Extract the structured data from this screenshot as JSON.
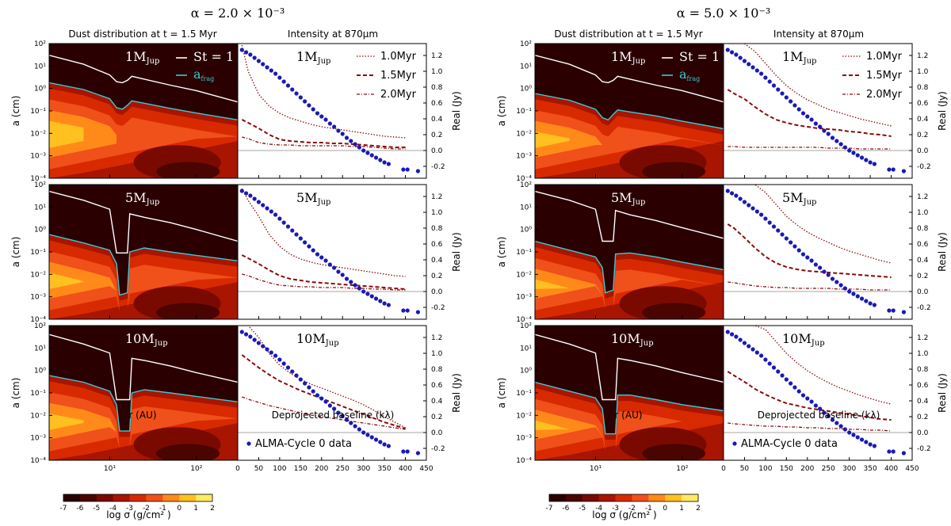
{
  "figure": {
    "columns": [
      {
        "alpha_title": "α = 2.0 × 10⁻³",
        "dust_title": "Dust distribution at t =  1.5 Myr",
        "intensity_title": "Intensity at 870μm"
      },
      {
        "alpha_title": "α = 5.0 × 10⁻³",
        "dust_title": "Dust distribution at t =  1.5 Myr",
        "intensity_title": "Intensity at 870μm"
      }
    ],
    "rows": [
      {
        "mass_label": "1M",
        "mass_sub": "Jup"
      },
      {
        "mass_label": "5M",
        "mass_sub": "Jup"
      },
      {
        "mass_label": "10M",
        "mass_sub": "Jup"
      }
    ],
    "legend_curves": {
      "st": "St = 1",
      "afrag": "a",
      "afrag_sub": "frag"
    },
    "legend_times": [
      "1.0Myr",
      "1.5Myr",
      "2.0Myr"
    ],
    "data_label": "ALMA-Cycle 0 data",
    "colorbar": {
      "label": "log σ (g/cm² )",
      "ticks": [
        "-7",
        "-6",
        "-5",
        "-4",
        "-3",
        "-2",
        "-1",
        "0",
        "1",
        "2"
      ],
      "colors": [
        "#2a0000",
        "#4a0500",
        "#7a0a00",
        "#a81500",
        "#d82a00",
        "#f0501a",
        "#ff8a1a",
        "#ffc020",
        "#ffea60",
        "#ffffb0"
      ]
    },
    "colors": {
      "st_line": "#ffffff",
      "afrag_line": "#3fc8d4",
      "data": "#1a1ab4",
      "model": "#8b0a0a",
      "gas_bg": "#2a0000"
    }
  },
  "chart_data": {
    "type": "line",
    "left_axes": {
      "xlabel": "r (AU)",
      "ylabel": "a (cm)",
      "x_scale": "log",
      "y_scale": "log",
      "xlim": [
        2,
        300
      ],
      "ylim": [
        0.0001,
        100
      ],
      "x_ticks": [
        "10¹",
        "10²"
      ],
      "y_ticks": [
        "10⁻⁴",
        "10⁻³",
        "10⁻²",
        "10⁻¹",
        "10⁰",
        "10¹",
        "10²"
      ]
    },
    "right_axes": {
      "xlabel": "Deprojected baseline (kλ)",
      "ylabel": "Real (Jy)",
      "xlim": [
        0,
        450
      ],
      "ylim": [
        -0.35,
        1.35
      ],
      "x_ticks": [
        "0",
        "50",
        "100",
        "150",
        "200",
        "250",
        "300",
        "350",
        "400",
        "450"
      ],
      "y_ticks": [
        "-0.2",
        "0.0",
        "0.2",
        "0.4",
        "0.6",
        "0.8",
        "1.0",
        "1.2"
      ]
    },
    "alma_data": {
      "baseline": [
        10,
        20,
        30,
        40,
        50,
        60,
        70,
        80,
        90,
        100,
        110,
        120,
        130,
        140,
        150,
        160,
        170,
        180,
        190,
        200,
        210,
        220,
        230,
        240,
        250,
        260,
        270,
        280,
        290,
        300,
        310,
        320,
        330,
        340,
        350,
        360,
        395,
        405,
        430
      ],
      "real": [
        1.27,
        1.24,
        1.21,
        1.17,
        1.13,
        1.09,
        1.05,
        1.01,
        0.97,
        0.92,
        0.87,
        0.82,
        0.77,
        0.72,
        0.67,
        0.62,
        0.57,
        0.52,
        0.47,
        0.43,
        0.39,
        0.34,
        0.3,
        0.25,
        0.21,
        0.16,
        0.12,
        0.08,
        0.04,
        0.0,
        -0.03,
        -0.06,
        -0.09,
        -0.12,
        -0.15,
        -0.17,
        -0.24,
        -0.24,
        -0.26
      ]
    },
    "model_baseline": [
      10,
      25,
      50,
      75,
      100,
      125,
      150,
      175,
      200,
      225,
      250,
      275,
      300,
      325,
      350,
      375,
      400
    ],
    "panels": [
      {
        "column": 0,
        "mass": 1,
        "st": [
          [
            2,
            30
          ],
          [
            5,
            12
          ],
          [
            10,
            4
          ],
          [
            12,
            2
          ],
          [
            14,
            1.8
          ],
          [
            16,
            2.3
          ],
          [
            18,
            3.5
          ],
          [
            25,
            2.6
          ],
          [
            50,
            1.4
          ],
          [
            100,
            0.8
          ],
          [
            300,
            0.25
          ]
        ],
        "afrag": [
          [
            2,
            1.8
          ],
          [
            5,
            0.9
          ],
          [
            10,
            0.35
          ],
          [
            12,
            0.14
          ],
          [
            14,
            0.12
          ],
          [
            16,
            0.18
          ],
          [
            18,
            0.28
          ],
          [
            25,
            0.22
          ],
          [
            50,
            0.13
          ],
          [
            100,
            0.08
          ],
          [
            300,
            0.04
          ]
        ],
        "v_1.0": [
          1.33,
          1.0,
          0.71,
          0.56,
          0.47,
          0.41,
          0.37,
          0.33,
          0.3,
          0.28,
          0.26,
          0.24,
          0.22,
          0.2,
          0.18,
          0.17,
          0.16
        ],
        "v_1.5": [
          0.39,
          0.35,
          0.28,
          0.2,
          0.14,
          0.12,
          0.11,
          0.1,
          0.1,
          0.09,
          0.09,
          0.08,
          0.07,
          0.06,
          0.05,
          0.04,
          0.04
        ],
        "v_2.0": [
          0.17,
          0.15,
          0.1,
          0.08,
          0.07,
          0.07,
          0.06,
          0.06,
          0.06,
          0.06,
          0.06,
          0.05,
          0.05,
          0.04,
          0.03,
          0.02,
          0.02
        ]
      },
      {
        "column": 0,
        "mass": 5,
        "st": [
          [
            2,
            50
          ],
          [
            5,
            20
          ],
          [
            10,
            8
          ],
          [
            12,
            0.09
          ],
          [
            16,
            0.09
          ],
          [
            17,
            5
          ],
          [
            25,
            3.5
          ],
          [
            50,
            2
          ],
          [
            100,
            1
          ],
          [
            300,
            0.3
          ]
        ],
        "afrag": [
          [
            2,
            0.6
          ],
          [
            5,
            0.25
          ],
          [
            10,
            0.12
          ],
          [
            12,
            0.03
          ],
          [
            13,
            0.0012
          ],
          [
            16,
            0.0015
          ],
          [
            17,
            0.1
          ],
          [
            25,
            0.15
          ],
          [
            50,
            0.1
          ],
          [
            100,
            0.07
          ],
          [
            300,
            0.04
          ]
        ],
        "v_1.0": [
          1.3,
          1.15,
          0.95,
          0.72,
          0.57,
          0.47,
          0.41,
          0.37,
          0.34,
          0.32,
          0.3,
          0.28,
          0.26,
          0.24,
          0.22,
          0.2,
          0.19
        ],
        "v_1.5": [
          0.46,
          0.42,
          0.35,
          0.27,
          0.2,
          0.16,
          0.14,
          0.12,
          0.11,
          0.1,
          0.09,
          0.08,
          0.07,
          0.06,
          0.05,
          0.04,
          0.03
        ],
        "v_2.0": [
          0.22,
          0.2,
          0.15,
          0.11,
          0.08,
          0.07,
          0.06,
          0.06,
          0.05,
          0.05,
          0.05,
          0.04,
          0.04,
          0.03,
          0.03,
          0.02,
          0.02
        ]
      },
      {
        "column": 0,
        "mass": 10,
        "st": [
          [
            2,
            40
          ],
          [
            5,
            15
          ],
          [
            10,
            6
          ],
          [
            12,
            0.05
          ],
          [
            17,
            0.05
          ],
          [
            18,
            3.5
          ],
          [
            25,
            2.8
          ],
          [
            50,
            1.6
          ],
          [
            100,
            0.8
          ],
          [
            300,
            0.3
          ]
        ],
        "afrag": [
          [
            2,
            0.6
          ],
          [
            5,
            0.3
          ],
          [
            10,
            0.12
          ],
          [
            12,
            0.03
          ],
          [
            13,
            0.002
          ],
          [
            17,
            0.002
          ],
          [
            18,
            0.1
          ],
          [
            25,
            0.14
          ],
          [
            50,
            0.1
          ],
          [
            100,
            0.07
          ],
          [
            300,
            0.04
          ]
        ],
        "v_1.0": [
          1.35,
          1.35,
          1.2,
          1.0,
          0.85,
          0.75,
          0.67,
          0.61,
          0.56,
          0.51,
          0.46,
          0.41,
          0.35,
          0.28,
          0.2,
          0.13,
          0.06
        ],
        "v_1.5": [
          0.98,
          0.92,
          0.82,
          0.73,
          0.65,
          0.59,
          0.53,
          0.48,
          0.43,
          0.38,
          0.33,
          0.28,
          0.23,
          0.18,
          0.13,
          0.09,
          0.05
        ],
        "v_2.0": [
          0.45,
          0.42,
          0.38,
          0.34,
          0.31,
          0.28,
          0.25,
          0.22,
          0.2,
          0.18,
          0.16,
          0.14,
          0.12,
          0.1,
          0.08,
          0.06,
          0.04
        ]
      },
      {
        "column": 1,
        "mass": 1,
        "st": [
          [
            2,
            30
          ],
          [
            5,
            12
          ],
          [
            10,
            4
          ],
          [
            12,
            2
          ],
          [
            14,
            1.8
          ],
          [
            16,
            2.3
          ],
          [
            18,
            3.5
          ],
          [
            25,
            2.6
          ],
          [
            50,
            1.4
          ],
          [
            100,
            0.8
          ],
          [
            300,
            0.25
          ]
        ],
        "afrag": [
          [
            2,
            0.6
          ],
          [
            5,
            0.3
          ],
          [
            10,
            0.12
          ],
          [
            12,
            0.05
          ],
          [
            14,
            0.04
          ],
          [
            16,
            0.07
          ],
          [
            18,
            0.11
          ],
          [
            25,
            0.09
          ],
          [
            50,
            0.06
          ],
          [
            100,
            0.035
          ],
          [
            300,
            0.016
          ]
        ],
        "v_1.0": [
          1.35,
          1.35,
          1.35,
          1.25,
          1.1,
          0.95,
          0.82,
          0.72,
          0.64,
          0.58,
          0.52,
          0.48,
          0.44,
          0.4,
          0.37,
          0.34,
          0.31
        ],
        "v_1.5": [
          0.77,
          0.72,
          0.65,
          0.55,
          0.46,
          0.39,
          0.35,
          0.32,
          0.3,
          0.28,
          0.27,
          0.26,
          0.24,
          0.23,
          0.21,
          0.2,
          0.18
        ],
        "v_2.0": [
          0.05,
          0.05,
          0.04,
          0.04,
          0.04,
          0.04,
          0.04,
          0.04,
          0.04,
          0.04,
          0.03,
          0.03,
          0.03,
          0.02,
          0.02,
          0.02,
          0.02
        ]
      },
      {
        "column": 1,
        "mass": 5,
        "st": [
          [
            2,
            50
          ],
          [
            5,
            20
          ],
          [
            10,
            8
          ],
          [
            12,
            0.3
          ],
          [
            16,
            0.3
          ],
          [
            17,
            7
          ],
          [
            25,
            4.5
          ],
          [
            50,
            2.5
          ],
          [
            100,
            1.2
          ],
          [
            300,
            0.4
          ]
        ],
        "afrag": [
          [
            2,
            0.3
          ],
          [
            5,
            0.12
          ],
          [
            10,
            0.06
          ],
          [
            12,
            0.02
          ],
          [
            13,
            0.0015
          ],
          [
            16,
            0.002
          ],
          [
            17,
            0.08
          ],
          [
            25,
            0.09
          ],
          [
            50,
            0.06
          ],
          [
            100,
            0.035
          ],
          [
            300,
            0.016
          ]
        ],
        "v_1.0": [
          1.35,
          1.35,
          1.35,
          1.35,
          1.25,
          1.1,
          0.95,
          0.84,
          0.75,
          0.68,
          0.62,
          0.56,
          0.51,
          0.47,
          0.43,
          0.39,
          0.36
        ],
        "v_1.5": [
          0.85,
          0.8,
          0.68,
          0.55,
          0.44,
          0.36,
          0.31,
          0.28,
          0.26,
          0.25,
          0.24,
          0.23,
          0.22,
          0.21,
          0.2,
          0.19,
          0.18
        ],
        "v_2.0": [
          0.12,
          0.11,
          0.09,
          0.07,
          0.06,
          0.05,
          0.05,
          0.04,
          0.04,
          0.04,
          0.04,
          0.03,
          0.03,
          0.03,
          0.02,
          0.02,
          0.02
        ]
      },
      {
        "column": 1,
        "mass": 10,
        "st": [
          [
            2,
            40
          ],
          [
            5,
            15
          ],
          [
            10,
            6
          ],
          [
            12,
            0.05
          ],
          [
            17,
            0.05
          ],
          [
            18,
            3.5
          ],
          [
            25,
            2.8
          ],
          [
            50,
            1.6
          ],
          [
            100,
            0.8
          ],
          [
            300,
            0.3
          ]
        ],
        "afrag": [
          [
            2,
            0.3
          ],
          [
            5,
            0.12
          ],
          [
            10,
            0.06
          ],
          [
            12,
            0.02
          ],
          [
            13,
            0.0015
          ],
          [
            17,
            0.0015
          ],
          [
            18,
            0.08
          ],
          [
            25,
            0.08
          ],
          [
            50,
            0.05
          ],
          [
            100,
            0.03
          ],
          [
            300,
            0.016
          ]
        ],
        "v_1.0": [
          1.35,
          1.35,
          1.35,
          1.35,
          1.3,
          1.15,
          1.0,
          0.88,
          0.78,
          0.7,
          0.63,
          0.57,
          0.52,
          0.47,
          0.43,
          0.39,
          0.36
        ],
        "v_1.5": [
          0.77,
          0.72,
          0.64,
          0.55,
          0.48,
          0.42,
          0.37,
          0.34,
          0.31,
          0.29,
          0.27,
          0.25,
          0.23,
          0.21,
          0.19,
          0.17,
          0.16
        ],
        "v_2.0": [
          0.12,
          0.11,
          0.1,
          0.09,
          0.08,
          0.08,
          0.07,
          0.07,
          0.06,
          0.06,
          0.05,
          0.05,
          0.04,
          0.04,
          0.03,
          0.03,
          0.02
        ]
      }
    ]
  }
}
